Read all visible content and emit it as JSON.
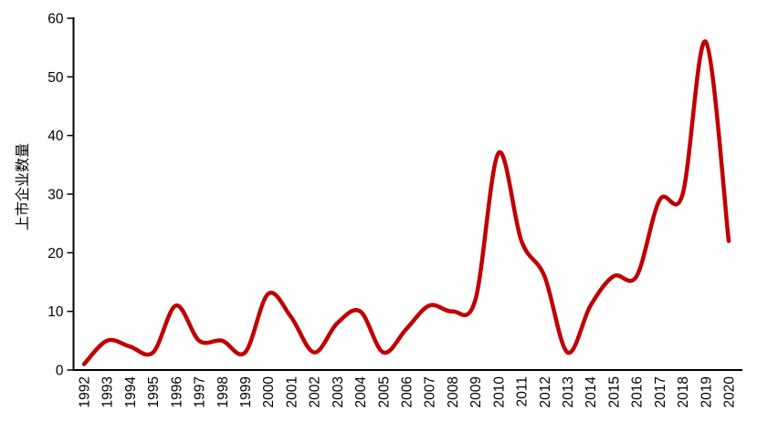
{
  "chart_data": {
    "type": "line",
    "title": "",
    "xlabel": "",
    "ylabel": "上市企业数量",
    "x": [
      1992,
      1993,
      1994,
      1995,
      1996,
      1997,
      1998,
      1999,
      2000,
      2001,
      2002,
      2003,
      2004,
      2005,
      2006,
      2007,
      2008,
      2009,
      2010,
      2011,
      2012,
      2013,
      2014,
      2015,
      2016,
      2017,
      2018,
      2019,
      2020
    ],
    "series": [
      {
        "name": "上市企业数量",
        "values": [
          1,
          5,
          4,
          3,
          11,
          5,
          5,
          3,
          13,
          9,
          3,
          8,
          10,
          3,
          7,
          11,
          10,
          12,
          37,
          22,
          16,
          3,
          11,
          16,
          16,
          29,
          30,
          56,
          22
        ],
        "color": "#C00000"
      }
    ],
    "ylim": [
      0,
      60
    ],
    "yticks": [
      0,
      10,
      20,
      30,
      40,
      50,
      60
    ],
    "grid": false,
    "legend": "none",
    "smooth": true
  },
  "colors": {
    "line": "#C00000",
    "axis": "#000000",
    "text": "#000000",
    "background": "#FFFFFF"
  }
}
